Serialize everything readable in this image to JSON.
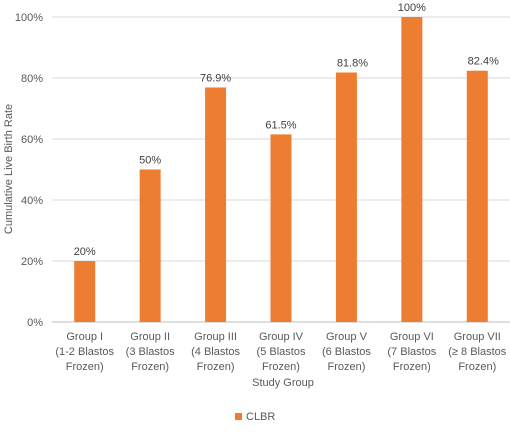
{
  "chart_data": {
    "type": "bar",
    "title": "",
    "xlabel": "Study Group",
    "ylabel": "Cumulative Live Birth Rate",
    "ylim": [
      0,
      100
    ],
    "yticks": [
      "0%",
      "20%",
      "40%",
      "60%",
      "80%",
      "100%"
    ],
    "grid": true,
    "legend_position": "bottom",
    "bar_color": "#ED7D31",
    "categories": [
      [
        "Group I",
        "(1-2 Blastos",
        "Frozen)"
      ],
      [
        "Group II",
        "(3 Blastos",
        "Frozen)"
      ],
      [
        "Group III",
        "(4 Blastos",
        "Frozen)"
      ],
      [
        "Group IV",
        "(5 Blastos",
        "Frozen)"
      ],
      [
        "Group V",
        "(6 Blastos",
        "Frozen)"
      ],
      [
        "Group VI",
        "(7 Blastos",
        "Frozen)"
      ],
      [
        "Group VII",
        "(≥ 8 Blastos",
        "Frozen)"
      ]
    ],
    "series": [
      {
        "name": "CLBR",
        "values": [
          20,
          50,
          76.9,
          61.5,
          81.8,
          100,
          82.4
        ],
        "labels": [
          "20%",
          "50%",
          "76.9%",
          "61.5%",
          "81.8%",
          "100%",
          "82.4%"
        ]
      }
    ]
  }
}
